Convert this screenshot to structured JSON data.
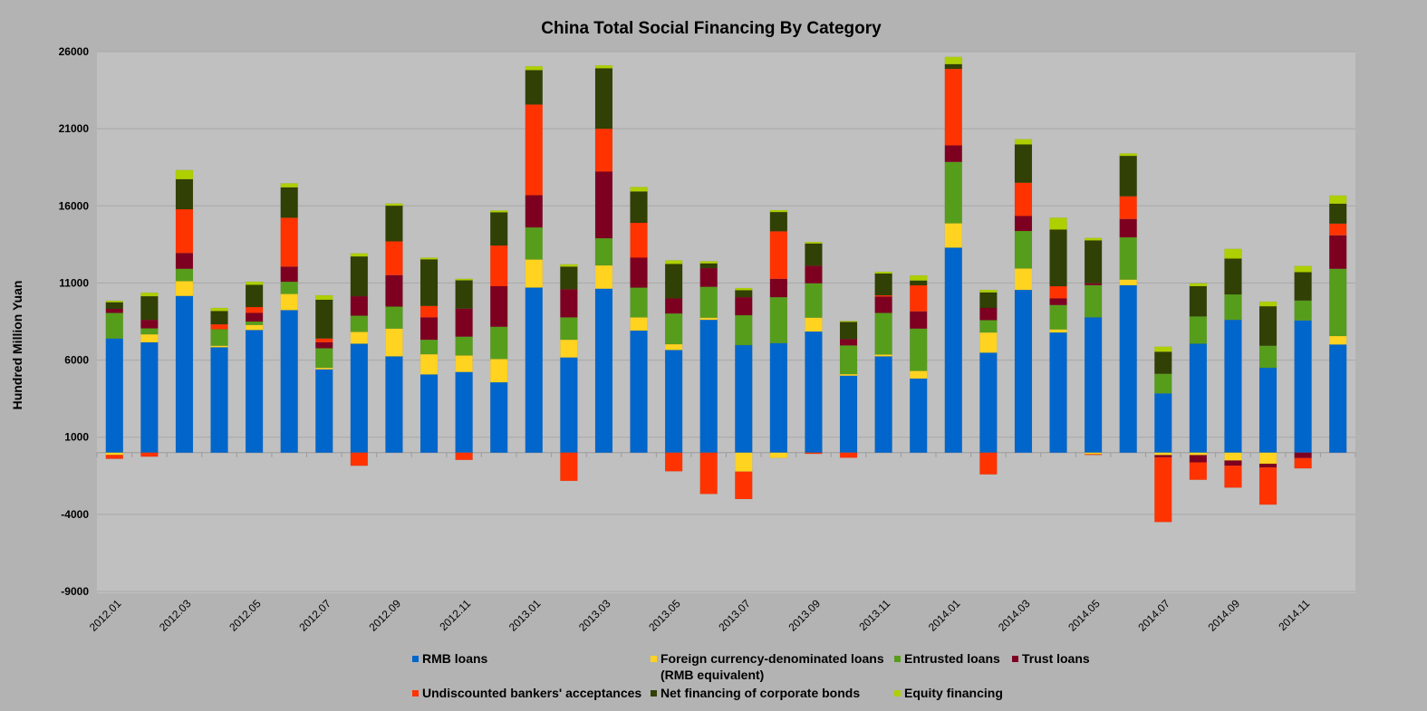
{
  "chart_data": {
    "type": "bar",
    "stacked": true,
    "title": "China Total Social Financing By Category",
    "xlabel": "",
    "ylabel": "Hundred Million Yuan",
    "ylim": [
      -9000,
      26000
    ],
    "yticks": [
      26000,
      21000,
      16000,
      11000,
      6000,
      1000,
      -4000,
      -9000
    ],
    "grid": true,
    "legend_position": "bottom",
    "categories": [
      "2012.01",
      "2012.02",
      "2012.03",
      "2012.04",
      "2012.05",
      "2012.06",
      "2012.07",
      "2012.08",
      "2012.09",
      "2012.10",
      "2012.11",
      "2012.12",
      "2013.01",
      "2013.02",
      "2013.03",
      "2013.04",
      "2013.05",
      "2013.06",
      "2013.07",
      "2013.08",
      "2013.09",
      "2013.10",
      "2013.11",
      "2013.12",
      "2014.01",
      "2014.02",
      "2014.03",
      "2014.04",
      "2014.05",
      "2014.06",
      "2014.07",
      "2014.08",
      "2014.09",
      "2014.10",
      "2014.11",
      "2014.12"
    ],
    "x_tick_labels": [
      "2012.01",
      "2012.03",
      "2012.05",
      "2012.07",
      "2012.09",
      "2012.11",
      "2013.01",
      "2013.03",
      "2013.05",
      "2013.07",
      "2013.09",
      "2013.11",
      "2014.01",
      "2014.03",
      "2014.05",
      "2014.07",
      "2014.09",
      "2014.11"
    ],
    "series": [
      {
        "name": "RMB loans",
        "color": "#0066cc",
        "values": [
          7400,
          7150,
          10160,
          6830,
          7950,
          9240,
          5400,
          7060,
          6240,
          5070,
          5230,
          4560,
          10700,
          6170,
          10630,
          7910,
          6650,
          8610,
          6970,
          7100,
          7850,
          4990,
          6240,
          4800,
          13290,
          6480,
          10550,
          7790,
          8770,
          10850,
          3840,
          7060,
          8610,
          5500,
          8570,
          7010
        ]
      },
      {
        "name": "Foreign currency-denominated loans (RMB equivalent)",
        "color": "#ffd320",
        "values": [
          -150,
          520,
          960,
          100,
          330,
          1050,
          100,
          770,
          1800,
          1310,
          1070,
          1510,
          1820,
          1150,
          1510,
          860,
          380,
          140,
          -1230,
          -340,
          900,
          100,
          120,
          500,
          1580,
          1310,
          1390,
          200,
          -100,
          370,
          -160,
          -160,
          -510,
          -720,
          0,
          550
        ]
      },
      {
        "name": "Entrusted loans",
        "color": "#579d1c",
        "values": [
          1660,
          390,
          800,
          1070,
          220,
          790,
          1270,
          1050,
          1430,
          940,
          1220,
          2090,
          2080,
          1450,
          1760,
          1930,
          1990,
          2000,
          1940,
          2980,
          2230,
          1860,
          2700,
          2740,
          3980,
          800,
          2430,
          1580,
          2090,
          2740,
          1270,
          1770,
          1650,
          1430,
          1290,
          4360
        ]
      },
      {
        "name": "Trust loans",
        "color": "#7e0021",
        "values": [
          260,
          550,
          1020,
          0,
          560,
          980,
          390,
          1260,
          2040,
          1450,
          1820,
          2630,
          2090,
          1820,
          4320,
          1940,
          980,
          1210,
          1170,
          1190,
          1140,
          410,
          1060,
          1120,
          1070,
          790,
          970,
          430,
          120,
          1190,
          -140,
          -470,
          -330,
          -240,
          -350,
          2170
        ]
      },
      {
        "name": "Undiscounted bankers' acceptances",
        "color": "#ff3300",
        "values": [
          -250,
          -260,
          2840,
          320,
          380,
          3170,
          240,
          -850,
          2190,
          740,
          -470,
          2640,
          5880,
          -1830,
          2780,
          2260,
          -1210,
          -2680,
          -1780,
          3080,
          -80,
          -330,
          80,
          1690,
          4960,
          -1410,
          2160,
          790,
          -50,
          1470,
          -4200,
          -1130,
          -1430,
          -2410,
          -670,
          760
        ]
      },
      {
        "name": "Net financing of corporate bonds",
        "color": "#314004",
        "values": [
          430,
          1530,
          1950,
          860,
          1440,
          1970,
          2510,
          2580,
          2310,
          3020,
          1830,
          2150,
          2230,
          1470,
          3920,
          2030,
          2230,
          310,
          450,
          1250,
          1440,
          1110,
          1410,
          310,
          310,
          1010,
          2480,
          3670,
          2780,
          2620,
          1430,
          1960,
          2320,
          2560,
          1840,
          1290
        ]
      },
      {
        "name": "Equity financing",
        "color": "#aecf00",
        "values": [
          100,
          230,
          590,
          200,
          200,
          260,
          290,
          200,
          140,
          110,
          100,
          120,
          250,
          150,
          190,
          290,
          240,
          140,
          140,
          120,
          100,
          60,
          120,
          330,
          470,
          160,
          340,
          770,
          160,
          160,
          330,
          190,
          630,
          300,
          400,
          530
        ]
      }
    ]
  },
  "legend": {
    "items": [
      {
        "label": "RMB loans",
        "color": "#0066cc"
      },
      {
        "label": "Foreign currency-denominated loans",
        "label_line2": "(RMB equivalent)",
        "color": "#ffd320"
      },
      {
        "label": "Entrusted loans",
        "color": "#579d1c"
      },
      {
        "label": "Trust loans",
        "color": "#7e0021"
      },
      {
        "label": "Undiscounted bankers' acceptances",
        "color": "#ff3300"
      },
      {
        "label": "Net financing of corporate bonds",
        "color": "#314004"
      },
      {
        "label": "Equity financing",
        "color": "#aecf00"
      }
    ]
  },
  "colors": {
    "background": "#b3b3b3",
    "plot_background": "#c0c0c0",
    "gridline": "#a8a8a8"
  }
}
